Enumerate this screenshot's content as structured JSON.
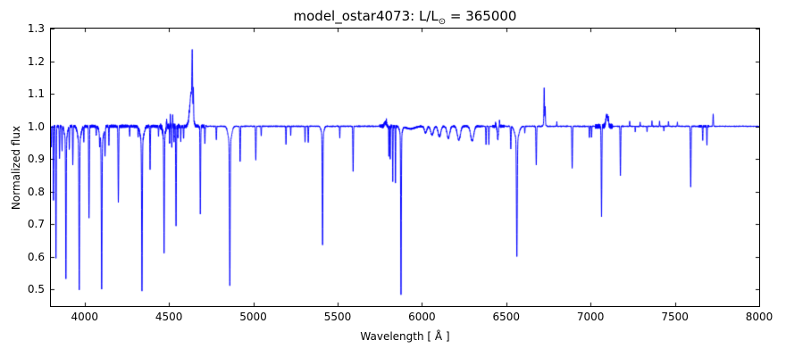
{
  "figure": {
    "title_prefix": "model_ostar4073: L/L",
    "title_sun": "⊙",
    "title_suffix": " = 365000",
    "xlabel": "Wavelength [ Å ]",
    "ylabel": "Normalized flux"
  },
  "chart_data": {
    "type": "line",
    "title": "model_ostar4073: L/L⊙ = 365000",
    "xlabel": "Wavelength [ Å ]",
    "ylabel": "Normalized flux",
    "xlim": [
      3800,
      8000
    ],
    "ylim": [
      0.448,
      1.3
    ],
    "xticks": [
      4000,
      4500,
      5000,
      5500,
      6000,
      6500,
      7000,
      7500,
      8000
    ],
    "yticks": [
      0.5,
      0.6,
      0.7,
      0.8,
      0.9,
      1.0,
      1.1,
      1.2,
      1.3
    ],
    "grid": false,
    "legend": "none",
    "line_color": "#0000ff",
    "frame_color": "#000000",
    "continuum_flux": 1.0,
    "peak_flux": 1.23,
    "min_flux": 0.515,
    "line_format": "[center_wavelength_angstrom, amplitude_relative_flux, gaussian_sigma_angstrom]",
    "absorption_lines": [
      [
        3803,
        -0.06,
        1.3
      ],
      [
        3815,
        -0.225,
        1.5
      ],
      [
        3830,
        -0.405,
        1.7
      ],
      [
        3851,
        -0.1,
        1.5
      ],
      [
        3866,
        -0.075,
        1.4
      ],
      [
        3889,
        -0.425,
        1.8
      ],
      [
        3889,
        -0.04,
        8
      ],
      [
        3909,
        -0.07,
        1.4
      ],
      [
        3930,
        -0.115,
        1.5
      ],
      [
        3968,
        -0.448,
        1.9
      ],
      [
        3968,
        -0.05,
        9
      ],
      [
        3995,
        -0.05,
        1.4
      ],
      [
        4026,
        -0.28,
        1.8
      ],
      [
        4069,
        -0.03,
        1.4
      ],
      [
        4089,
        -0.04,
        1.4
      ],
      [
        4101,
        -0.45,
        2.0
      ],
      [
        4101,
        -0.05,
        10
      ],
      [
        4121,
        -0.09,
        1.5
      ],
      [
        4144,
        -0.055,
        1.5
      ],
      [
        4200,
        -0.23,
        1.8
      ],
      [
        4267,
        -0.03,
        1.4
      ],
      [
        4317,
        -0.025,
        1.4
      ],
      [
        4340,
        -0.455,
        2.0
      ],
      [
        4340,
        -0.05,
        10
      ],
      [
        4388,
        -0.13,
        1.6
      ],
      [
        4438,
        -0.03,
        1.4
      ],
      [
        4471,
        -0.35,
        1.8
      ],
      [
        4471,
        -0.035,
        7
      ],
      [
        4504,
        -0.05,
        1.2
      ],
      [
        4517,
        -0.065,
        1.3
      ],
      [
        4530,
        -0.04,
        1.2
      ],
      [
        4542,
        -0.31,
        1.8
      ],
      [
        4553,
        -0.03,
        1.2
      ],
      [
        4570,
        -0.045,
        1.3
      ],
      [
        4587,
        -0.04,
        1.3
      ],
      [
        4686,
        -0.265,
        1.7
      ],
      [
        4713,
        -0.055,
        1.4
      ],
      [
        4781,
        -0.04,
        1.4
      ],
      [
        4861,
        -0.44,
        2.0
      ],
      [
        4861,
        -0.05,
        10
      ],
      [
        4922,
        -0.11,
        1.6
      ],
      [
        5015,
        -0.105,
        1.6
      ],
      [
        5047,
        -0.03,
        1.3
      ],
      [
        5194,
        -0.055,
        1.3
      ],
      [
        5222,
        -0.03,
        1.2
      ],
      [
        5307,
        -0.05,
        1.3
      ],
      [
        5326,
        -0.05,
        1.3
      ],
      [
        5411,
        -0.335,
        1.8
      ],
      [
        5411,
        -0.03,
        7
      ],
      [
        5513,
        -0.035,
        1.3
      ],
      [
        5592,
        -0.14,
        1.6
      ],
      [
        5804,
        -0.095,
        1.1
      ],
      [
        5812,
        -0.1,
        1.1
      ],
      [
        5827,
        -0.17,
        1.2
      ],
      [
        5843,
        -0.17,
        1.2
      ],
      [
        5876,
        -0.485,
        1.8
      ],
      [
        5876,
        -0.03,
        7
      ],
      [
        5930,
        -0.008,
        25
      ],
      [
        6022,
        -0.02,
        7
      ],
      [
        6060,
        -0.027,
        8
      ],
      [
        6104,
        -0.032,
        8
      ],
      [
        6157,
        -0.037,
        8
      ],
      [
        6219,
        -0.042,
        9
      ],
      [
        6298,
        -0.045,
        9
      ],
      [
        6380,
        -0.055,
        1.4
      ],
      [
        6397,
        -0.055,
        1.4
      ],
      [
        6450,
        -0.04,
        3.0
      ],
      [
        6527,
        -0.07,
        1.7
      ],
      [
        6563,
        -0.36,
        2.3
      ],
      [
        6563,
        -0.04,
        12
      ],
      [
        6610,
        -0.02,
        1.4
      ],
      [
        6678,
        -0.12,
        1.8
      ],
      [
        6891,
        -0.13,
        1.8
      ],
      [
        6993,
        -0.035,
        1.3
      ],
      [
        7006,
        -0.035,
        1.3
      ],
      [
        7065,
        -0.27,
        1.8
      ],
      [
        7177,
        -0.15,
        1.6
      ],
      [
        7265,
        -0.018,
        1.2
      ],
      [
        7335,
        -0.018,
        1.2
      ],
      [
        7435,
        -0.015,
        1.2
      ],
      [
        7594,
        -0.185,
        1.8
      ],
      [
        7665,
        -0.045,
        1.3
      ],
      [
        7690,
        -0.06,
        1.3
      ]
    ],
    "emission_lines": [
      [
        4486,
        0.02,
        1.4
      ],
      [
        4508,
        0.03,
        1.1
      ],
      [
        4522,
        0.03,
        1.1
      ],
      [
        4632,
        0.1,
        9
      ],
      [
        4638,
        0.15,
        1.8
      ],
      [
        4645,
        0.08,
        1.2
      ],
      [
        5782,
        0.012,
        5
      ],
      [
        5790,
        0.018,
        1.1
      ],
      [
        6437,
        0.01,
        1.0
      ],
      [
        6460,
        0.018,
        1.1
      ],
      [
        6725,
        0.105,
        1.5
      ],
      [
        6731,
        0.05,
        1.3
      ],
      [
        6727,
        0.015,
        5
      ],
      [
        6800,
        0.014,
        1.1
      ],
      [
        7097,
        0.032,
        6
      ],
      [
        7106,
        0.015,
        1.3
      ],
      [
        7232,
        0.015,
        1.2
      ],
      [
        7294,
        0.012,
        1.2
      ],
      [
        7364,
        0.015,
        1.2
      ],
      [
        7409,
        0.018,
        1.2
      ],
      [
        7462,
        0.015,
        1.2
      ],
      [
        7515,
        0.012,
        1.2
      ],
      [
        7727,
        0.038,
        1.4
      ]
    ],
    "noise_bands": [
      [
        3800,
        4450,
        0.005
      ],
      [
        4450,
        4560,
        0.009
      ],
      [
        4560,
        4720,
        0.006
      ],
      [
        4720,
        5750,
        0.002
      ],
      [
        5750,
        5850,
        0.006
      ],
      [
        5850,
        6350,
        0.003
      ],
      [
        6350,
        6420,
        0.002
      ],
      [
        6420,
        6490,
        0.005
      ],
      [
        6490,
        7030,
        0.002
      ],
      [
        7030,
        7130,
        0.008
      ],
      [
        7130,
        7640,
        0.002
      ],
      [
        7640,
        7700,
        0.004
      ],
      [
        7700,
        8000,
        0.0018
      ]
    ],
    "default_noise": 0.0015,
    "noise_seed": 11,
    "sample_step_angstrom": 0.5
  }
}
